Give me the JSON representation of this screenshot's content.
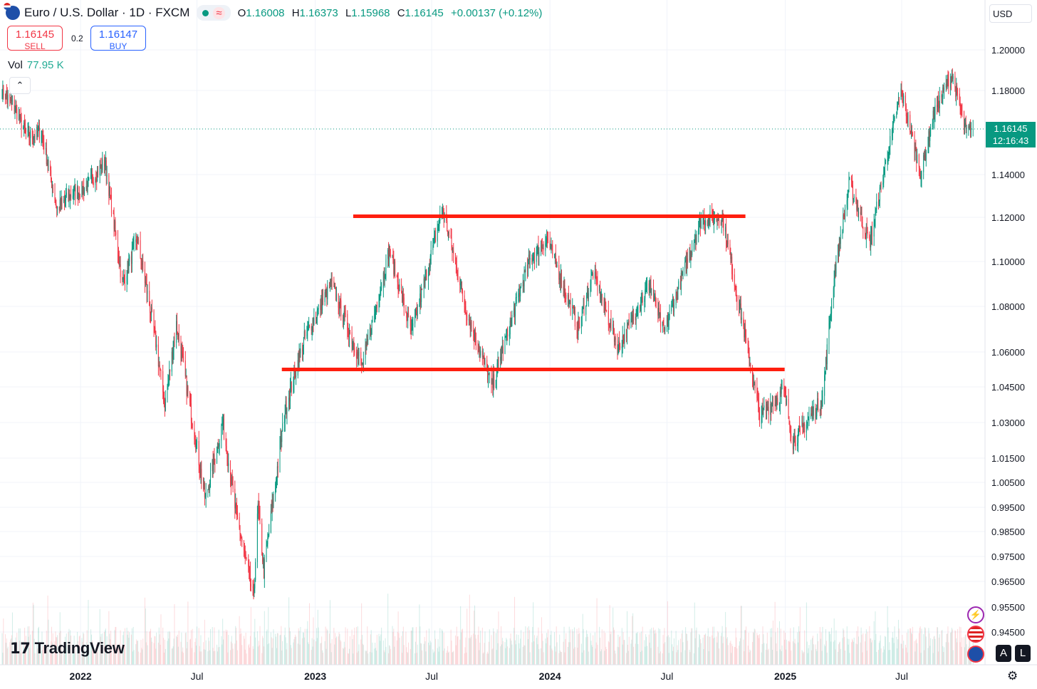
{
  "header": {
    "symbol": "Euro / U.S. Dollar · 1D · FXCM",
    "ohlc": [
      {
        "k": "O",
        "v": "1.16008"
      },
      {
        "k": "H",
        "v": "1.16373"
      },
      {
        "k": "L",
        "v": "1.15968"
      },
      {
        "k": "C",
        "v": "1.16145"
      }
    ],
    "change": "+0.00137 (+0.12%)"
  },
  "trade": {
    "sell_price": "1.16145",
    "sell_label": "SELL",
    "spread": "0.2",
    "buy_price": "1.16147",
    "buy_label": "BUY"
  },
  "volume": {
    "label": "Vol",
    "value": "77.95 K"
  },
  "currency": "USD",
  "last_price": {
    "price": "1.16145",
    "countdown": "12:16:43",
    "color": "#089981"
  },
  "logo": "TradingView",
  "buttons": {
    "auto": "A",
    "log": "L"
  },
  "colors": {
    "up": "#089981",
    "down": "#f23645",
    "annotation": "#ff1f0f"
  },
  "chart_data": {
    "type": "candlestick",
    "interval": "1D",
    "price_ticks": [
      1.2,
      1.18,
      1.14,
      1.12,
      1.1,
      1.08,
      1.06,
      1.045,
      1.03,
      1.015,
      1.005,
      0.995,
      0.985,
      0.975,
      0.965,
      0.955,
      0.945
    ],
    "price_tick_labels": [
      "1.20000",
      "1.18000",
      "1.14000",
      "1.12000",
      "1.10000",
      "1.08000",
      "1.06000",
      "1.04500",
      "1.03000",
      "1.01500",
      "1.00500",
      "0.99500",
      "0.98500",
      "0.97500",
      "0.96500",
      "0.95500",
      "0.94500"
    ],
    "time_ticks": [
      {
        "label": "2022",
        "date": "2022-01-01",
        "bold": true
      },
      {
        "label": "Jul",
        "date": "2022-07-01",
        "bold": false
      },
      {
        "label": "2023",
        "date": "2023-01-01",
        "bold": true
      },
      {
        "label": "Jul",
        "date": "2023-07-01",
        "bold": false
      },
      {
        "label": "2024",
        "date": "2024-01-01",
        "bold": true
      },
      {
        "label": "Jul",
        "date": "2024-07-01",
        "bold": false
      },
      {
        "label": "2025",
        "date": "2025-01-01",
        "bold": true
      },
      {
        "label": "Jul",
        "date": "2025-07-01",
        "bold": false
      }
    ],
    "price_path": [
      [
        "2021-09-01",
        1.18
      ],
      [
        "2021-09-20",
        1.172
      ],
      [
        "2021-10-10",
        1.158
      ],
      [
        "2021-11-01",
        1.16
      ],
      [
        "2021-11-25",
        1.124
      ],
      [
        "2021-12-15",
        1.13
      ],
      [
        "2022-01-10",
        1.134
      ],
      [
        "2022-02-08",
        1.146
      ],
      [
        "2022-03-07",
        1.09
      ],
      [
        "2022-03-30",
        1.11
      ],
      [
        "2022-04-25",
        1.07
      ],
      [
        "2022-05-12",
        1.037
      ],
      [
        "2022-05-30",
        1.072
      ],
      [
        "2022-06-15",
        1.045
      ],
      [
        "2022-07-14",
        0.998
      ],
      [
        "2022-08-10",
        1.03
      ],
      [
        "2022-08-29",
        0.995
      ],
      [
        "2022-09-27",
        0.958
      ],
      [
        "2022-10-04",
        0.995
      ],
      [
        "2022-10-13",
        0.969
      ],
      [
        "2022-11-15",
        1.035
      ],
      [
        "2022-12-15",
        1.066
      ],
      [
        "2023-01-26",
        1.09
      ],
      [
        "2023-03-15",
        1.054
      ],
      [
        "2023-04-26",
        1.105
      ],
      [
        "2023-05-31",
        1.068
      ],
      [
        "2023-07-18",
        1.124
      ],
      [
        "2023-08-25",
        1.077
      ],
      [
        "2023-10-03",
        1.045
      ],
      [
        "2023-11-29",
        1.1
      ],
      [
        "2023-12-28",
        1.11
      ],
      [
        "2024-02-14",
        1.07
      ],
      [
        "2024-03-08",
        1.095
      ],
      [
        "2024-04-16",
        1.062
      ],
      [
        "2024-06-04",
        1.09
      ],
      [
        "2024-06-26",
        1.068
      ],
      [
        "2024-08-23",
        1.119
      ],
      [
        "2024-09-25",
        1.12
      ],
      [
        "2024-10-23",
        1.078
      ],
      [
        "2024-11-22",
        1.033
      ],
      [
        "2024-12-30",
        1.043
      ],
      [
        "2025-01-13",
        1.022
      ],
      [
        "2025-02-03",
        1.03
      ],
      [
        "2025-02-28",
        1.04
      ],
      [
        "2025-03-18",
        1.094
      ],
      [
        "2025-04-11",
        1.136
      ],
      [
        "2025-05-12",
        1.108
      ],
      [
        "2025-06-30",
        1.18
      ],
      [
        "2025-07-31",
        1.14
      ],
      [
        "2025-08-21",
        1.17
      ],
      [
        "2025-09-17",
        1.188
      ],
      [
        "2025-10-09",
        1.16
      ],
      [
        "2025-10-20",
        1.16145
      ]
    ],
    "annotations": [
      {
        "type": "horizontal-line",
        "price": 1.1205,
        "from": "2023-03-01",
        "to": "2024-10-31",
        "color": "#ff1f0f"
      },
      {
        "type": "horizontal-line",
        "price": 1.0525,
        "from": "2022-11-10",
        "to": "2024-12-31",
        "color": "#ff1f0f"
      }
    ],
    "last_price_line": 1.16145,
    "grid": true
  }
}
